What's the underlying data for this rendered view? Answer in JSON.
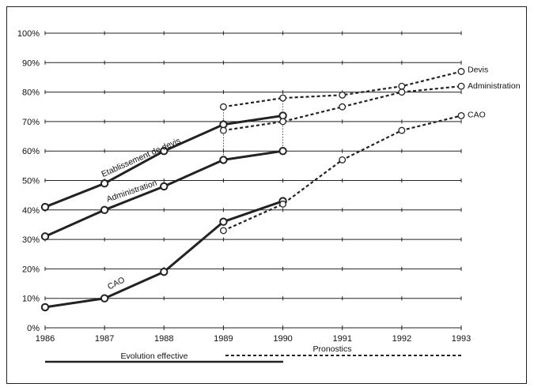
{
  "chart_data": {
    "type": "line",
    "x": [
      1986,
      1987,
      1988,
      1989,
      1990,
      1991,
      1992,
      1993
    ],
    "ylim": [
      0,
      100
    ],
    "yticks": [
      "0%",
      "10%",
      "20%",
      "30%",
      "40%",
      "50%",
      "60%",
      "70%",
      "80%",
      "90%",
      "100%"
    ],
    "xticks": [
      "1986",
      "1987",
      "1988",
      "1989",
      "1990",
      "1991",
      "1992",
      "1993"
    ],
    "grid": true,
    "series": [
      {
        "name": "Etablissement de devis",
        "style": "actual",
        "x": [
          1986,
          1987,
          1988,
          1989,
          1990
        ],
        "values": [
          41,
          49,
          60,
          69,
          72
        ]
      },
      {
        "name": "Administration",
        "style": "actual",
        "x": [
          1986,
          1987,
          1988,
          1989,
          1990
        ],
        "values": [
          31,
          40,
          48,
          57,
          60
        ]
      },
      {
        "name": "CAO",
        "style": "actual",
        "x": [
          1986,
          1987,
          1988,
          1989,
          1990
        ],
        "values": [
          7,
          10,
          19,
          36,
          43
        ]
      },
      {
        "name": "Devis",
        "style": "forecast",
        "x": [
          1989,
          1990,
          1991,
          1992,
          1993
        ],
        "values": [
          75,
          78,
          79,
          82,
          87
        ]
      },
      {
        "name": "Administration",
        "style": "forecast",
        "x": [
          1989,
          1990,
          1991,
          1992,
          1993
        ],
        "values": [
          67,
          70,
          75,
          80,
          82
        ]
      },
      {
        "name": "CAO",
        "style": "forecast",
        "x": [
          1989,
          1990,
          1991,
          1992,
          1993
        ],
        "values": [
          33,
          42,
          57,
          67,
          72
        ]
      }
    ],
    "legend": {
      "actual": "Evolution effective",
      "forecast": "Pronostics"
    },
    "colors": {
      "line": "#222222",
      "grid": "#222222"
    }
  }
}
